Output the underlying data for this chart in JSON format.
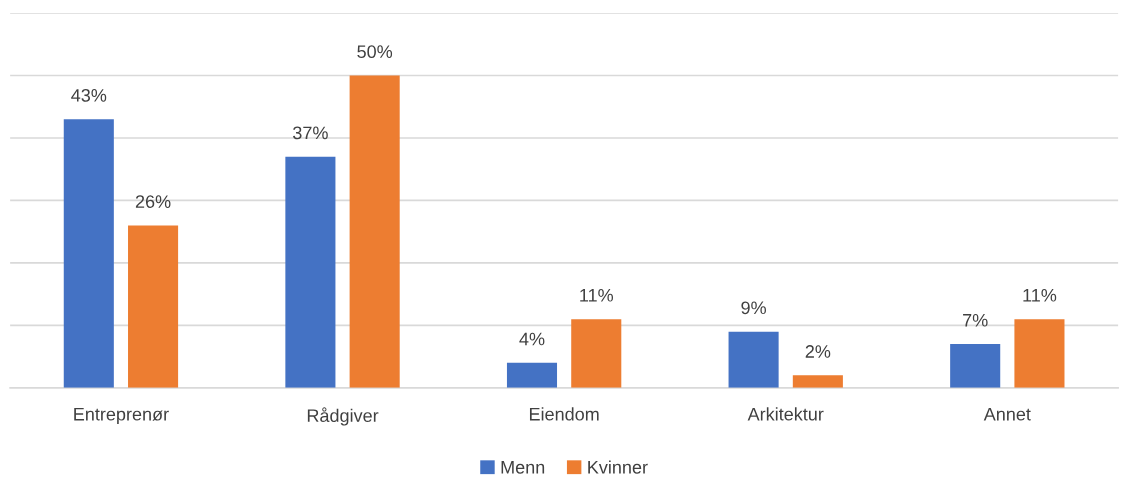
{
  "chart_data": {
    "type": "bar",
    "categories": [
      "Entreprenør",
      "Rådgiver",
      "Eiendom",
      "Arkitektur",
      "Annet"
    ],
    "series": [
      {
        "name": "Menn",
        "color": "#4472c4",
        "values": [
          43,
          37,
          4,
          9,
          7
        ],
        "value_labels": [
          "43%",
          "37%",
          "4%",
          "9%",
          "7%"
        ]
      },
      {
        "name": "Kvinner",
        "color": "#ed7d31",
        "values": [
          26,
          50,
          11,
          2,
          11
        ],
        "value_labels": [
          "26%",
          "50%",
          "11%",
          "2%",
          "11%"
        ]
      }
    ],
    "ylim": [
      0,
      60
    ],
    "yticks": [
      {
        "value": 0,
        "label": null
      },
      {
        "value": 10,
        "label": null
      },
      {
        "value": 20,
        "label": null
      },
      {
        "value": 30,
        "label": null
      },
      {
        "value": 40,
        "label": null
      },
      {
        "value": 50,
        "label": null
      },
      {
        "value": 60,
        "label": null
      }
    ],
    "tick_labels": "x",
    "grid": "y",
    "legend": "bottom"
  }
}
